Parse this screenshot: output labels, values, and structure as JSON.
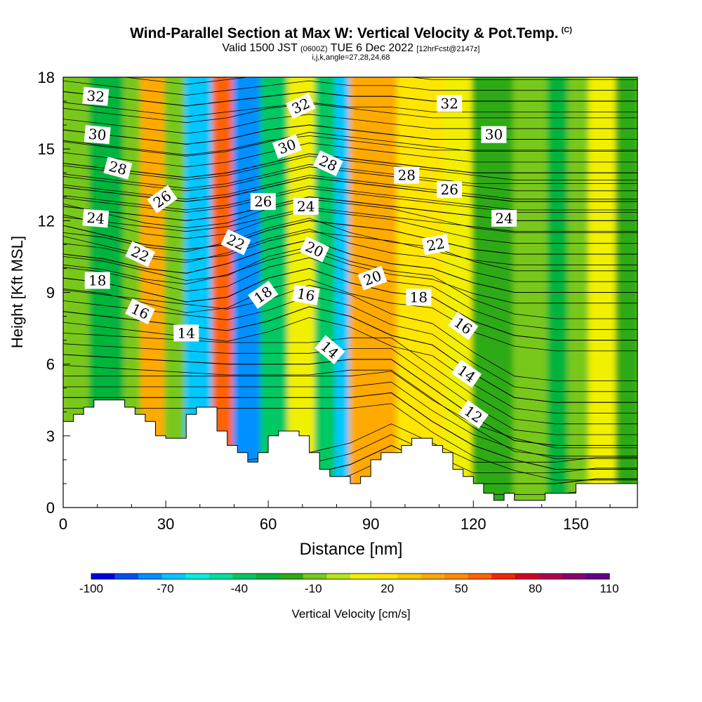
{
  "titles": {
    "main": "Wind-Parallel Section at Max W: Vertical Velocity & Pot.Temp.",
    "copyright": "(C)",
    "valid_pre": "Valid 1500 JST",
    "valid_utc": "(0600Z)",
    "valid_post": "TUE 6 Dec 2022",
    "forecast": "[12hrFcst@2147z]",
    "indices": "i,j,k,angle=27,28,24,68"
  },
  "chart_data": {
    "type": "heatmap",
    "xlabel": "Distance [nm]",
    "ylabel": "Height [Kft MSL]",
    "xlim": [
      0,
      168
    ],
    "ylim": [
      0,
      18
    ],
    "x_ticks": [
      "0",
      "30",
      "60",
      "90",
      "120",
      "150"
    ],
    "y_ticks": [
      "0",
      "3",
      "6",
      "9",
      "12",
      "15",
      "18"
    ],
    "colorbar": {
      "label": "Vertical Velocity [cm/s]",
      "tick_labels": [
        "-100",
        "-70",
        "-40",
        "-10",
        "20",
        "50",
        "80",
        "110"
      ],
      "colors": [
        "#0000e0",
        "#0050f0",
        "#0090ff",
        "#00c8ff",
        "#00f0e0",
        "#00e0a0",
        "#00c864",
        "#00b43c",
        "#2daa14",
        "#78c81e",
        "#b4e61e",
        "#f0f000",
        "#ffe600",
        "#ffc800",
        "#ffaa00",
        "#ff8c00",
        "#ff6400",
        "#f02800",
        "#d20028",
        "#b40050",
        "#8c006e",
        "#64008c"
      ]
    },
    "velocity_bands": [
      {
        "x": 0,
        "w": 8,
        "value": -10
      },
      {
        "x": 8,
        "w": 10,
        "value": -30
      },
      {
        "x": 18,
        "w": 5,
        "value": -10
      },
      {
        "x": 23,
        "w": 7,
        "value": 40
      },
      {
        "x": 30,
        "w": 6,
        "value": -10
      },
      {
        "x": 36,
        "w": 8,
        "value": -70
      },
      {
        "x": 44,
        "w": 6,
        "value": 60
      },
      {
        "x": 50,
        "w": 8,
        "value": -80
      },
      {
        "x": 58,
        "w": 8,
        "value": -40
      },
      {
        "x": 66,
        "w": 8,
        "value": 10
      },
      {
        "x": 74,
        "w": 6,
        "value": -40
      },
      {
        "x": 80,
        "w": 4,
        "value": -70
      },
      {
        "x": 84,
        "w": 14,
        "value": 40
      },
      {
        "x": 98,
        "w": 14,
        "value": 20
      },
      {
        "x": 112,
        "w": 8,
        "value": 10
      },
      {
        "x": 120,
        "w": 12,
        "value": -20
      },
      {
        "x": 132,
        "w": 10,
        "value": -10
      },
      {
        "x": 142,
        "w": 6,
        "value": -30
      },
      {
        "x": 148,
        "w": 6,
        "value": -10
      },
      {
        "x": 154,
        "w": 8,
        "value": 10
      },
      {
        "x": 162,
        "w": 6,
        "value": -20
      }
    ],
    "isentropes": [
      {
        "theta": 10,
        "y": [
          1.0,
          1.0,
          1.0,
          1.0,
          1.0,
          1.2,
          1.4,
          1.8,
          2.6,
          1.8,
          1.0,
          1.0,
          1.0,
          1.2,
          1.2
        ]
      },
      {
        "theta": 12,
        "y": [
          4.6,
          4.6,
          4.6,
          4.6,
          4.6,
          4.6,
          4.6,
          4.6,
          4.8,
          3.6,
          2.6,
          2.0,
          1.6,
          1.6,
          1.6
        ]
      },
      {
        "theta": 14,
        "y": [
          6.4,
          6.3,
          6.2,
          6.1,
          6.0,
          6.0,
          6.0,
          6.2,
          6.2,
          5.0,
          3.8,
          2.8,
          2.6,
          2.6,
          2.6
        ]
      },
      {
        "theta": 16,
        "y": [
          8.2,
          8.0,
          7.8,
          7.6,
          7.4,
          7.8,
          8.4,
          8.0,
          7.2,
          6.8,
          5.6,
          4.6,
          4.4,
          4.4,
          4.4
        ]
      },
      {
        "theta": 18,
        "y": [
          9.6,
          9.4,
          9.0,
          8.6,
          8.8,
          9.6,
          10.0,
          9.4,
          9.0,
          8.8,
          7.8,
          7.2,
          7.0,
          7.0,
          7.0
        ]
      },
      {
        "theta": 20,
        "y": [
          10.6,
          10.4,
          10.0,
          9.8,
          10.2,
          10.8,
          11.2,
          10.6,
          10.2,
          10.0,
          9.4,
          9.0,
          9.0,
          9.0,
          9.0
        ]
      },
      {
        "theta": 22,
        "y": [
          11.8,
          11.4,
          11.0,
          10.8,
          11.0,
          11.6,
          12.0,
          11.8,
          11.6,
          11.2,
          10.8,
          10.6,
          10.6,
          10.6,
          10.6
        ]
      },
      {
        "theta": 24,
        "y": [
          12.6,
          12.4,
          12.2,
          12.0,
          12.2,
          12.6,
          13.0,
          12.8,
          12.6,
          12.4,
          12.2,
          12.0,
          12.0,
          12.0,
          12.0
        ]
      },
      {
        "theta": 26,
        "y": [
          13.4,
          13.2,
          13.0,
          12.8,
          13.0,
          13.4,
          13.8,
          13.6,
          13.4,
          13.2,
          13.0,
          12.8,
          12.8,
          12.8,
          12.8
        ]
      },
      {
        "theta": 28,
        "y": [
          14.4,
          14.2,
          14.0,
          13.8,
          14.0,
          14.4,
          14.8,
          14.6,
          14.4,
          14.2,
          14.0,
          14.0,
          14.0,
          14.0,
          14.0
        ]
      },
      {
        "theta": 30,
        "y": [
          15.8,
          15.6,
          15.4,
          15.2,
          15.4,
          15.8,
          16.0,
          15.8,
          15.6,
          15.4,
          15.4,
          15.4,
          15.4,
          15.4,
          15.4
        ]
      },
      {
        "theta": 32,
        "y": [
          17.4,
          17.2,
          17.0,
          16.8,
          17.0,
          17.2,
          17.4,
          17.2,
          17.2,
          17.0,
          17.0,
          17.0,
          17.0,
          17.0,
          17.0
        ]
      }
    ],
    "isentrope_x": [
      0,
      12,
      24,
      36,
      48,
      60,
      72,
      84,
      96,
      108,
      120,
      132,
      144,
      156,
      168
    ],
    "contour_labels": [
      {
        "text": "32",
        "x": 9.5,
        "y": 17.2,
        "rot": 5
      },
      {
        "text": "30",
        "x": 10,
        "y": 15.6,
        "rot": 5
      },
      {
        "text": "28",
        "x": 16,
        "y": 14.2,
        "rot": 15
      },
      {
        "text": "24",
        "x": 9.5,
        "y": 12.1,
        "rot": 5
      },
      {
        "text": "18",
        "x": 10,
        "y": 9.5,
        "rot": 0
      },
      {
        "text": "26",
        "x": 29,
        "y": 12.9,
        "rot": -35
      },
      {
        "text": "22",
        "x": 22.5,
        "y": 10.6,
        "rot": 25
      },
      {
        "text": "16",
        "x": 22.5,
        "y": 8.2,
        "rot": 25
      },
      {
        "text": "14",
        "x": 36,
        "y": 7.3,
        "rot": 0
      },
      {
        "text": "22",
        "x": 50.5,
        "y": 11.1,
        "rot": 25
      },
      {
        "text": "26",
        "x": 58.5,
        "y": 12.8,
        "rot": 0
      },
      {
        "text": "18",
        "x": 58.5,
        "y": 8.9,
        "rot": -35
      },
      {
        "text": "32",
        "x": 69.5,
        "y": 16.8,
        "rot": -25
      },
      {
        "text": "30",
        "x": 65.5,
        "y": 15.1,
        "rot": -20
      },
      {
        "text": "24",
        "x": 71,
        "y": 12.6,
        "rot": 0
      },
      {
        "text": "28",
        "x": 77.5,
        "y": 14.4,
        "rot": 25
      },
      {
        "text": "20",
        "x": 73.5,
        "y": 10.8,
        "rot": 25
      },
      {
        "text": "16",
        "x": 71,
        "y": 8.9,
        "rot": 10
      },
      {
        "text": "14",
        "x": 78,
        "y": 6.6,
        "rot": 40
      },
      {
        "text": "20",
        "x": 90.5,
        "y": 9.6,
        "rot": -20
      },
      {
        "text": "28",
        "x": 100.5,
        "y": 13.9,
        "rot": 0
      },
      {
        "text": "18",
        "x": 104,
        "y": 8.8,
        "rot": 0
      },
      {
        "text": "32",
        "x": 113,
        "y": 16.9,
        "rot": 0
      },
      {
        "text": "26",
        "x": 113,
        "y": 13.3,
        "rot": 0
      },
      {
        "text": "22",
        "x": 109,
        "y": 11.0,
        "rot": -10
      },
      {
        "text": "30",
        "x": 126,
        "y": 15.6,
        "rot": 0
      },
      {
        "text": "24",
        "x": 129,
        "y": 12.1,
        "rot": 0
      },
      {
        "text": "16",
        "x": 117,
        "y": 7.6,
        "rot": 35
      },
      {
        "text": "14",
        "x": 118,
        "y": 5.6,
        "rot": 35
      },
      {
        "text": "12",
        "x": 120,
        "y": 3.9,
        "rot": 35
      }
    ],
    "terrain": [
      [
        0,
        3.6
      ],
      [
        3,
        3.6
      ],
      [
        3,
        3.9
      ],
      [
        6,
        3.9
      ],
      [
        6,
        4.2
      ],
      [
        9,
        4.2
      ],
      [
        9,
        4.5
      ],
      [
        18,
        4.5
      ],
      [
        18,
        4.2
      ],
      [
        21,
        4.2
      ],
      [
        21,
        3.9
      ],
      [
        24,
        3.9
      ],
      [
        24,
        3.6
      ],
      [
        27,
        3.6
      ],
      [
        27,
        3.0
      ],
      [
        30,
        3.0
      ],
      [
        30,
        2.9
      ],
      [
        36,
        2.9
      ],
      [
        36,
        3.9
      ],
      [
        39,
        3.9
      ],
      [
        39,
        4.2
      ],
      [
        45,
        4.2
      ],
      [
        45,
        3.2
      ],
      [
        48,
        3.2
      ],
      [
        48,
        2.6
      ],
      [
        51,
        2.6
      ],
      [
        51,
        2.3
      ],
      [
        54,
        2.3
      ],
      [
        54,
        1.9
      ],
      [
        57,
        1.9
      ],
      [
        57,
        2.3
      ],
      [
        60,
        2.3
      ],
      [
        60,
        3.0
      ],
      [
        63,
        3.0
      ],
      [
        63,
        3.2
      ],
      [
        69,
        3.2
      ],
      [
        69,
        3.0
      ],
      [
        72,
        3.0
      ],
      [
        72,
        2.3
      ],
      [
        75,
        2.3
      ],
      [
        75,
        1.6
      ],
      [
        78,
        1.6
      ],
      [
        78,
        1.3
      ],
      [
        84,
        1.3
      ],
      [
        84,
        1.0
      ],
      [
        87,
        1.0
      ],
      [
        87,
        1.3
      ],
      [
        90,
        1.3
      ],
      [
        90,
        2.0
      ],
      [
        93,
        2.0
      ],
      [
        93,
        2.3
      ],
      [
        99,
        2.3
      ],
      [
        99,
        2.6
      ],
      [
        102,
        2.6
      ],
      [
        102,
        2.9
      ],
      [
        108,
        2.9
      ],
      [
        108,
        2.6
      ],
      [
        111,
        2.6
      ],
      [
        111,
        2.3
      ],
      [
        114,
        2.3
      ],
      [
        114,
        1.6
      ],
      [
        117,
        1.6
      ],
      [
        117,
        1.3
      ],
      [
        120,
        1.3
      ],
      [
        120,
        1.0
      ],
      [
        123,
        1.0
      ],
      [
        123,
        0.6
      ],
      [
        126,
        0.6
      ],
      [
        126,
        0.3
      ],
      [
        129,
        0.3
      ],
      [
        129,
        0.6
      ],
      [
        132,
        0.6
      ],
      [
        132,
        0.3
      ],
      [
        141,
        0.3
      ],
      [
        141,
        0.6
      ],
      [
        150,
        0.6
      ],
      [
        150,
        1.0
      ],
      [
        168,
        1.0
      ]
    ]
  }
}
